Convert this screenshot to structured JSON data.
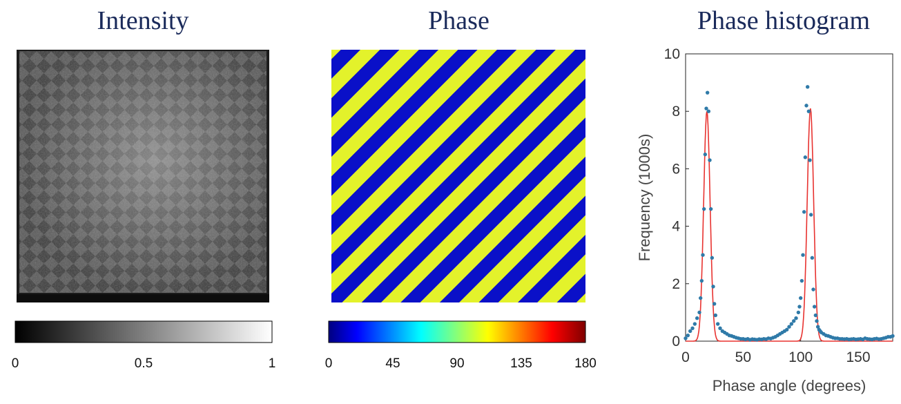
{
  "panels": {
    "intensity": {
      "title": "Intensity",
      "colorbar": {
        "colormap": "gray",
        "ticks": [
          "0",
          "0.5",
          "1"
        ],
        "range": [
          0,
          1
        ]
      }
    },
    "phase": {
      "title": "Phase",
      "colorbar": {
        "colormap": "jet",
        "ticks": [
          "0",
          "45",
          "90",
          "135",
          "180"
        ],
        "range": [
          0,
          180
        ]
      }
    },
    "histogram": {
      "title": "Phase histogram"
    }
  },
  "chart_data": {
    "type": "scatter",
    "title": "Phase histogram",
    "xlabel": "Phase angle (degrees)",
    "ylabel": "Frequency (1000s)",
    "xlim": [
      0,
      180
    ],
    "ylim": [
      0,
      10
    ],
    "xticks": [
      0,
      50,
      100,
      150
    ],
    "yticks": [
      0,
      2,
      4,
      6,
      8,
      10
    ],
    "grid": false,
    "colors": {
      "points": "#2f7aa8",
      "fit": "#e8322f"
    },
    "series": [
      {
        "kind": "points",
        "x": [
          0,
          2,
          4,
          6,
          8,
          10,
          12,
          13,
          14,
          15,
          16,
          17,
          18,
          19,
          20,
          21,
          22,
          23,
          24,
          25,
          26,
          28,
          30,
          32,
          34,
          36,
          38,
          40,
          42,
          44,
          46,
          48,
          50,
          52,
          54,
          56,
          58,
          60,
          62,
          64,
          66,
          68,
          70,
          72,
          74,
          76,
          78,
          80,
          82,
          84,
          86,
          88,
          90,
          92,
          94,
          96,
          98,
          99,
          100,
          101,
          102,
          103,
          104,
          105,
          106,
          107,
          108,
          109,
          110,
          111,
          112,
          113,
          114,
          115,
          116,
          117,
          118,
          120,
          122,
          124,
          126,
          128,
          130,
          132,
          134,
          136,
          138,
          140,
          142,
          144,
          146,
          148,
          150,
          152,
          154,
          156,
          158,
          160,
          162,
          164,
          166,
          168,
          170,
          172,
          174,
          176,
          178,
          180
        ],
        "y": [
          0.1,
          0.2,
          0.35,
          0.45,
          0.6,
          0.8,
          1.0,
          1.5,
          2.1,
          3.0,
          4.6,
          6.5,
          8.1,
          8.65,
          8.0,
          6.3,
          4.6,
          2.9,
          1.9,
          1.3,
          0.9,
          0.6,
          0.45,
          0.35,
          0.3,
          0.25,
          0.2,
          0.18,
          0.15,
          0.12,
          0.1,
          0.08,
          0.08,
          0.06,
          0.08,
          0.05,
          0.07,
          0.06,
          0.05,
          0.07,
          0.06,
          0.08,
          0.07,
          0.1,
          0.09,
          0.12,
          0.15,
          0.2,
          0.25,
          0.3,
          0.35,
          0.4,
          0.5,
          0.6,
          0.7,
          0.8,
          1.0,
          1.2,
          1.5,
          2.1,
          3.0,
          4.5,
          6.4,
          8.2,
          8.85,
          8.0,
          6.3,
          4.4,
          2.9,
          1.8,
          1.2,
          0.9,
          0.7,
          0.5,
          0.4,
          0.35,
          0.3,
          0.25,
          0.2,
          0.18,
          0.15,
          0.12,
          0.1,
          0.1,
          0.08,
          0.08,
          0.07,
          0.08,
          0.06,
          0.07,
          0.08,
          0.06,
          0.07,
          0.08,
          0.06,
          0.1,
          0.08,
          0.07,
          0.06,
          0.08,
          0.09,
          0.07,
          0.08,
          0.1,
          0.12,
          0.15,
          0.15,
          0.18
        ]
      },
      {
        "kind": "fit-line",
        "peaks": [
          {
            "center": 18.5,
            "height": 8.0,
            "sigma": 2.8
          },
          {
            "center": 108.5,
            "height": 8.1,
            "sigma": 2.8
          }
        ]
      }
    ]
  }
}
